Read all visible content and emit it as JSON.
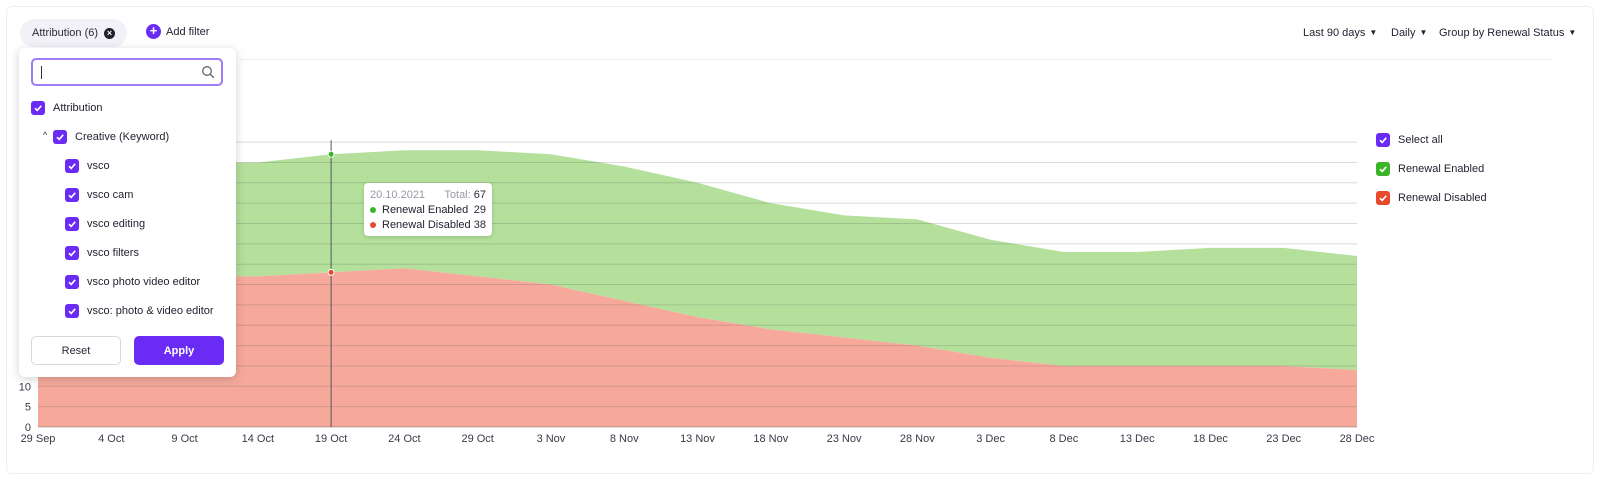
{
  "filter_bar": {
    "chip_label": "Attribution (6)",
    "add_filter": "Add filter",
    "range": "Last 90 days",
    "interval": "Daily",
    "group": "Group by Renewal Status"
  },
  "colors": {
    "accent": "#6a2cf5",
    "enabled_fill": "#b4e09c",
    "disabled_fill": "#f6a99b",
    "enabled_legend": "#3ab52a",
    "disabled_legend": "#e84a2d"
  },
  "dropdown": {
    "search_placeholder": "",
    "root_label": "Attribution",
    "group_label": "Creative (Keyword)",
    "items": [
      "vsco",
      "vsco cam",
      "vsco editing",
      "vsco filters",
      "vsco photo video editor",
      "vsco: photo & video editor"
    ],
    "reset_label": "Reset",
    "apply_label": "Apply"
  },
  "legend": {
    "select_all": "Select all",
    "items": [
      {
        "label": "Renewal Enabled",
        "color": "#3ab52a"
      },
      {
        "label": "Renewal Disabled",
        "color": "#e84a2d"
      }
    ]
  },
  "tooltip": {
    "date": "20.10.2021",
    "total_label": "Total:",
    "total": "67",
    "rows": [
      {
        "label": "Renewal Enabled",
        "value": "29",
        "color": "#3ab52a"
      },
      {
        "label": "Renewal Disabled",
        "value": "38",
        "color": "#e84a2d"
      }
    ]
  },
  "chart_data": {
    "type": "area",
    "stacked": true,
    "x": [
      "29 Sep",
      "4 Oct",
      "9 Oct",
      "14 Oct",
      "19 Oct",
      "24 Oct",
      "29 Oct",
      "3 Nov",
      "8 Nov",
      "13 Nov",
      "18 Nov",
      "23 Nov",
      "28 Nov",
      "3 Dec",
      "8 Dec",
      "13 Dec",
      "18 Dec",
      "23 Dec",
      "28 Dec"
    ],
    "y_ticks": [
      0,
      5,
      10
    ],
    "ylim": [
      0,
      70
    ],
    "series": [
      {
        "name": "Renewal Disabled",
        "color": "#f6a99b",
        "values": [
          37,
          37,
          37,
          37,
          38,
          39,
          37,
          35,
          31,
          27,
          24,
          22,
          20,
          17,
          15,
          15,
          15,
          15,
          14
        ]
      },
      {
        "name": "Renewal Enabled",
        "color": "#b4e09c",
        "values": [
          28,
          28,
          28,
          28,
          29,
          29,
          31,
          32,
          33,
          33,
          31,
          30,
          31,
          29,
          28,
          28,
          29,
          29,
          28
        ]
      }
    ],
    "hover_index": 4,
    "grid": true
  }
}
